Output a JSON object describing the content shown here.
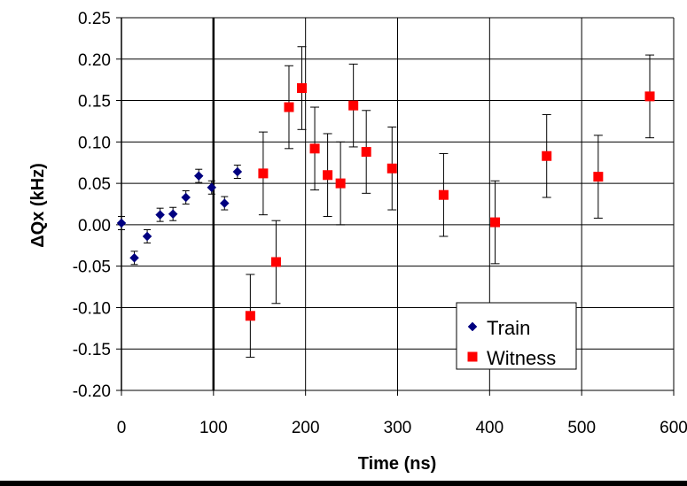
{
  "chart_data": {
    "type": "scatter",
    "title": "",
    "xlabel": "Time (ns)",
    "ylabel": "ΔQx (kHz)",
    "xlim": [
      0,
      600
    ],
    "ylim": [
      -0.2,
      0.25
    ],
    "x_ticks": [
      "0",
      "100",
      "200",
      "300",
      "400",
      "500",
      "600"
    ],
    "y_ticks": [
      "-0.20",
      "-0.15",
      "-0.10",
      "-0.05",
      "0.00",
      "0.05",
      "0.10",
      "0.15",
      "0.20",
      "0.25"
    ],
    "grid": true,
    "legend_position": "bottom-right",
    "vertical_line_x": 100,
    "series": [
      {
        "name": "Train",
        "marker": "diamond",
        "color": "#000080",
        "points": [
          {
            "x": 0,
            "y": 0.002,
            "err": 0.008
          },
          {
            "x": 14,
            "y": -0.04,
            "err": 0.008
          },
          {
            "x": 28,
            "y": -0.014,
            "err": 0.008
          },
          {
            "x": 42,
            "y": 0.012,
            "err": 0.008
          },
          {
            "x": 56,
            "y": 0.013,
            "err": 0.008
          },
          {
            "x": 70,
            "y": 0.033,
            "err": 0.008
          },
          {
            "x": 84,
            "y": 0.059,
            "err": 0.008
          },
          {
            "x": 98,
            "y": 0.045,
            "err": 0.008
          },
          {
            "x": 112,
            "y": 0.026,
            "err": 0.008
          },
          {
            "x": 126,
            "y": 0.064,
            "err": 0.008
          }
        ]
      },
      {
        "name": "Witness",
        "marker": "square",
        "color": "#ff0000",
        "points": [
          {
            "x": 140,
            "y": -0.11,
            "err": 0.05
          },
          {
            "x": 154,
            "y": 0.062,
            "err": 0.05
          },
          {
            "x": 168,
            "y": -0.045,
            "err": 0.05
          },
          {
            "x": 182,
            "y": 0.142,
            "err": 0.05
          },
          {
            "x": 196,
            "y": 0.165,
            "err": 0.05
          },
          {
            "x": 210,
            "y": 0.092,
            "err": 0.05
          },
          {
            "x": 224,
            "y": 0.06,
            "err": 0.05
          },
          {
            "x": 238,
            "y": 0.05,
            "err": 0.05
          },
          {
            "x": 252,
            "y": 0.144,
            "err": 0.05
          },
          {
            "x": 266,
            "y": 0.088,
            "err": 0.05
          },
          {
            "x": 294,
            "y": 0.068,
            "err": 0.05
          },
          {
            "x": 350,
            "y": 0.036,
            "err": 0.05
          },
          {
            "x": 406,
            "y": 0.003,
            "err": 0.05
          },
          {
            "x": 462,
            "y": 0.083,
            "err": 0.05
          },
          {
            "x": 518,
            "y": 0.058,
            "err": 0.05
          },
          {
            "x": 574,
            "y": 0.155,
            "err": 0.05
          }
        ]
      }
    ]
  }
}
